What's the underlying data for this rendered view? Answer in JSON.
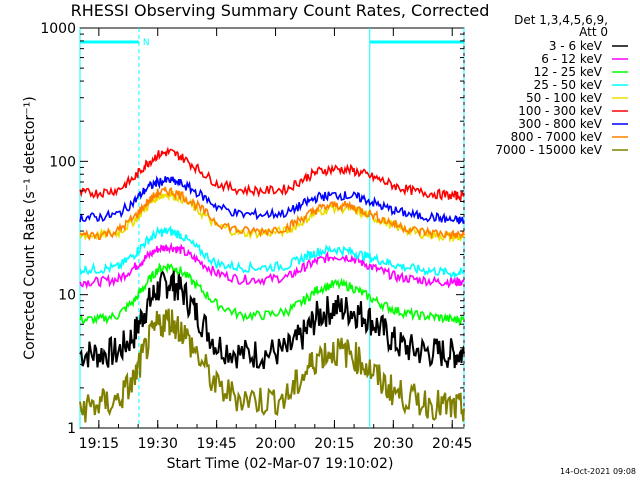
{
  "chart_data": {
    "type": "line",
    "title": "RHESSI Observing Summary Count Rates, Corrected",
    "xlabel": "Start Time (02-Mar-07 19:10:02)",
    "ylabel": "Corrected Count Rate (s⁻¹ detector⁻¹)",
    "x_range_minutes": [
      19.17,
      20.8
    ],
    "x_start_time": "19:10:02",
    "xticks": [
      "19:15",
      "19:30",
      "19:45",
      "20:00",
      "20:15",
      "20:30",
      "20:45"
    ],
    "xtick_hours": [
      19.25,
      19.5,
      19.75,
      20.0,
      20.25,
      20.5,
      20.75
    ],
    "yscale": "log",
    "ylim": [
      1,
      1000
    ],
    "yticks": [
      "1",
      "10",
      "100",
      "1000"
    ],
    "ytick_values": [
      1,
      10,
      100,
      1000
    ],
    "legend_header": [
      "Det 1,3,4,5,6,9,",
      "Att 0"
    ],
    "legend_position": "right",
    "timestamp": "14-Oct-2021 09:08",
    "night_marker": "N",
    "night_intervals": [
      [
        19.17,
        19.42
      ],
      [
        20.4,
        20.8
      ]
    ],
    "saa_intervals": [
      [
        19.42,
        19.42
      ],
      [
        20.79,
        20.79
      ]
    ],
    "times": [
      19.17,
      19.25,
      19.33,
      19.4,
      19.45,
      19.5,
      19.55,
      19.6,
      19.67,
      19.75,
      19.85,
      19.95,
      20.05,
      20.12,
      20.18,
      20.25,
      20.32,
      20.38,
      20.45,
      20.52,
      20.6,
      20.68,
      20.75,
      20.8
    ],
    "series": [
      {
        "name": "3 - 6 keV",
        "color": "#000000",
        "values": [
          3.6,
          3.6,
          3.7,
          5,
          8,
          11,
          12.5,
          11,
          7,
          4.2,
          3.6,
          3.6,
          3.8,
          5,
          7,
          8,
          7.6,
          7,
          5.5,
          4.2,
          3.8,
          3.7,
          3.6,
          3.6
        ]
      },
      {
        "name": "6 - 12 keV",
        "color": "#ff00ff",
        "values": [
          12.5,
          12.5,
          13,
          16,
          19,
          22,
          23,
          21.5,
          18,
          14.5,
          13,
          13,
          13.5,
          16,
          18,
          19.5,
          19,
          17,
          15,
          13.5,
          13,
          12.5,
          12.5,
          12.5
        ]
      },
      {
        "name": "12 - 25 keV",
        "color": "#00ff00",
        "values": [
          6.5,
          6.5,
          7,
          9,
          12,
          15.5,
          16.5,
          15,
          11.5,
          8.5,
          7,
          7,
          7.5,
          9,
          11,
          12,
          11.5,
          10,
          8.5,
          7.5,
          7,
          6.8,
          6.5,
          6.5
        ]
      },
      {
        "name": "25 - 50 keV",
        "color": "#00ffff",
        "values": [
          15.5,
          15.5,
          16,
          20,
          25,
          29,
          30,
          28,
          22,
          17,
          16,
          16,
          16.5,
          19,
          21,
          22,
          21,
          19.5,
          18,
          16.5,
          15.5,
          15,
          14.5,
          14.5
        ]
      },
      {
        "name": "50 - 100 keV",
        "color": "#e8e000",
        "values": [
          28,
          28,
          29,
          36,
          45,
          55,
          57,
          53,
          43,
          33,
          29,
          29,
          30,
          36,
          42,
          45,
          44,
          40,
          36,
          32,
          29,
          28,
          27,
          27
        ]
      },
      {
        "name": "100 - 300 keV",
        "color": "#ff0000",
        "values": [
          58,
          58,
          61,
          75,
          95,
          112,
          118,
          108,
          88,
          68,
          61,
          60,
          62,
          74,
          84,
          88,
          86,
          80,
          72,
          64,
          59,
          57,
          55,
          55
        ]
      },
      {
        "name": "300 - 800 keV",
        "color": "#0000ff",
        "values": [
          38,
          38,
          40,
          50,
          62,
          70,
          72,
          68,
          58,
          46,
          40,
          40,
          41,
          48,
          54,
          56,
          55,
          52,
          46,
          42,
          39,
          38,
          36,
          36
        ]
      },
      {
        "name": "800 - 7000 keV",
        "color": "#ff8000",
        "values": [
          28,
          28,
          30,
          38,
          48,
          58,
          60,
          56,
          46,
          35,
          30,
          30,
          32,
          38,
          44,
          47,
          46,
          42,
          37,
          33,
          30,
          29,
          28,
          28
        ]
      },
      {
        "name": "7000 - 15000 keV",
        "color": "#808000",
        "values": [
          1.4,
          1.5,
          1.6,
          2.3,
          4,
          6,
          6.5,
          5.5,
          3.5,
          2,
          1.7,
          1.6,
          1.7,
          2.5,
          3.5,
          3.8,
          3.6,
          3,
          2.2,
          1.8,
          1.6,
          1.5,
          1.4,
          1.4
        ]
      }
    ]
  }
}
